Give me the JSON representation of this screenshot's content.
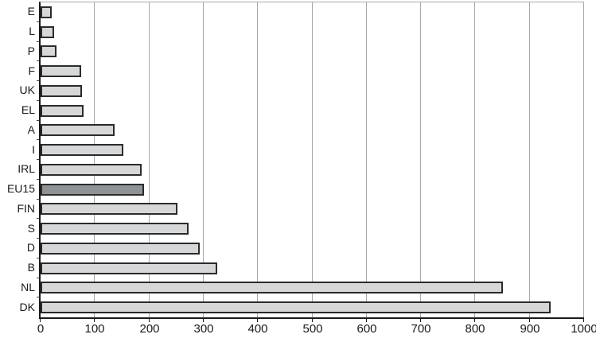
{
  "chart_data": {
    "type": "bar",
    "orientation": "horizontal",
    "title": "",
    "xlabel": "",
    "ylabel": "",
    "categories": [
      "E",
      "L",
      "P",
      "F",
      "UK",
      "EL",
      "A",
      "I",
      "IRL",
      "EU15",
      "FIN",
      "S",
      "D",
      "B",
      "NL",
      "DK"
    ],
    "values": [
      20,
      25,
      30,
      75,
      76,
      79,
      136,
      153,
      186,
      190,
      252,
      272,
      293,
      325,
      850,
      938
    ],
    "highlight_category": "EU15",
    "xlim": [
      0,
      1000
    ],
    "x_tick_labels": [
      "0",
      "100",
      "200",
      "300",
      "400",
      "500",
      "600",
      "700",
      "800",
      "900",
      "1000"
    ],
    "grid": true,
    "legend": "none",
    "colors": {
      "bar_fill": "#d5d7d9",
      "highlight_fill": "#8d9397",
      "bar_border": "#2b2b2b",
      "gridline": "#a8a8a8",
      "axis": "#1a1a1a",
      "text": "#1a1a1a",
      "background": "#ffffff"
    }
  }
}
